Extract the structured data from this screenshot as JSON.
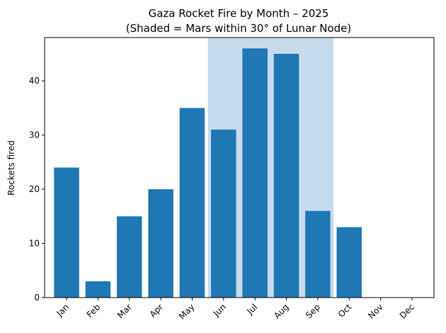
{
  "chart_data": {
    "type": "bar",
    "title": "Gaza Rocket Fire by Month – 2025",
    "subtitle": "(Shaded = Mars within 30° of Lunar Node)",
    "xlabel": "",
    "ylabel": "Rockets fired",
    "categories": [
      "Jan",
      "Feb",
      "Mar",
      "Apr",
      "May",
      "Jun",
      "Jul",
      "Aug",
      "Sep",
      "Oct",
      "Nov",
      "Dec"
    ],
    "values": [
      24,
      3,
      15,
      20,
      35,
      31,
      46,
      45,
      16,
      13,
      0,
      0
    ],
    "ylim": [
      0,
      48
    ],
    "yticks": [
      0,
      10,
      20,
      30,
      40
    ],
    "shaded_range": [
      "Jun",
      "Sep"
    ],
    "grid": false,
    "colors": {
      "bar": "#1f77b4",
      "shade": "#c6dbec"
    }
  }
}
